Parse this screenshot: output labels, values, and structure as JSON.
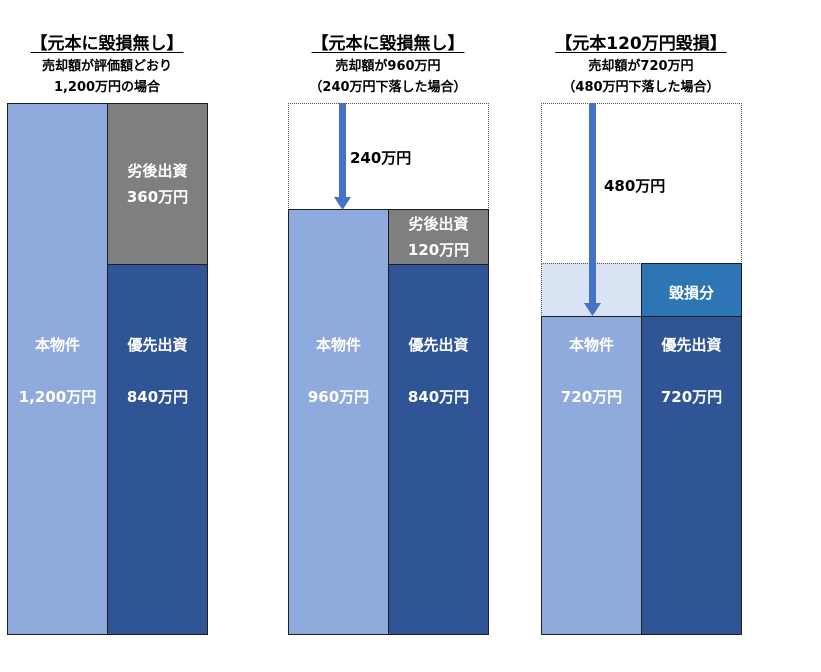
{
  "colors": {
    "property": "#8faadc",
    "senior": "#2f5597",
    "junior": "#7f7f7f",
    "loss": "#2e75b6",
    "loss_zone": "#dae3f3",
    "arrow": "#4472c4"
  },
  "panels": [
    {
      "title": "【元本に毀損無し】",
      "subtitle_lines": [
        "売却額が評価額どおり",
        "1,200万円の場合"
      ],
      "property_label": "本物件",
      "property_value": "1,200万円",
      "junior_label": "劣後出資",
      "junior_value": "360万円",
      "senior_label": "優先出資",
      "senior_value": "840万円"
    },
    {
      "title": "【元本に毀損無し】",
      "subtitle_lines": [
        "売却額が960万円",
        "（240万円下落した場合）"
      ],
      "drop_label": "240万円",
      "property_label": "本物件",
      "property_value": "960万円",
      "junior_label": "劣後出資",
      "junior_value": "120万円",
      "senior_label": "優先出資",
      "senior_value": "840万円"
    },
    {
      "title": "【元本120万円毀損】",
      "subtitle_lines": [
        "売却額が720万円",
        "（480万円下落した場合）"
      ],
      "drop_label": "480万円",
      "loss_label": "毀損分",
      "property_label": "本物件",
      "property_value": "720万円",
      "senior_label": "優先出資",
      "senior_value": "720万円"
    }
  ]
}
